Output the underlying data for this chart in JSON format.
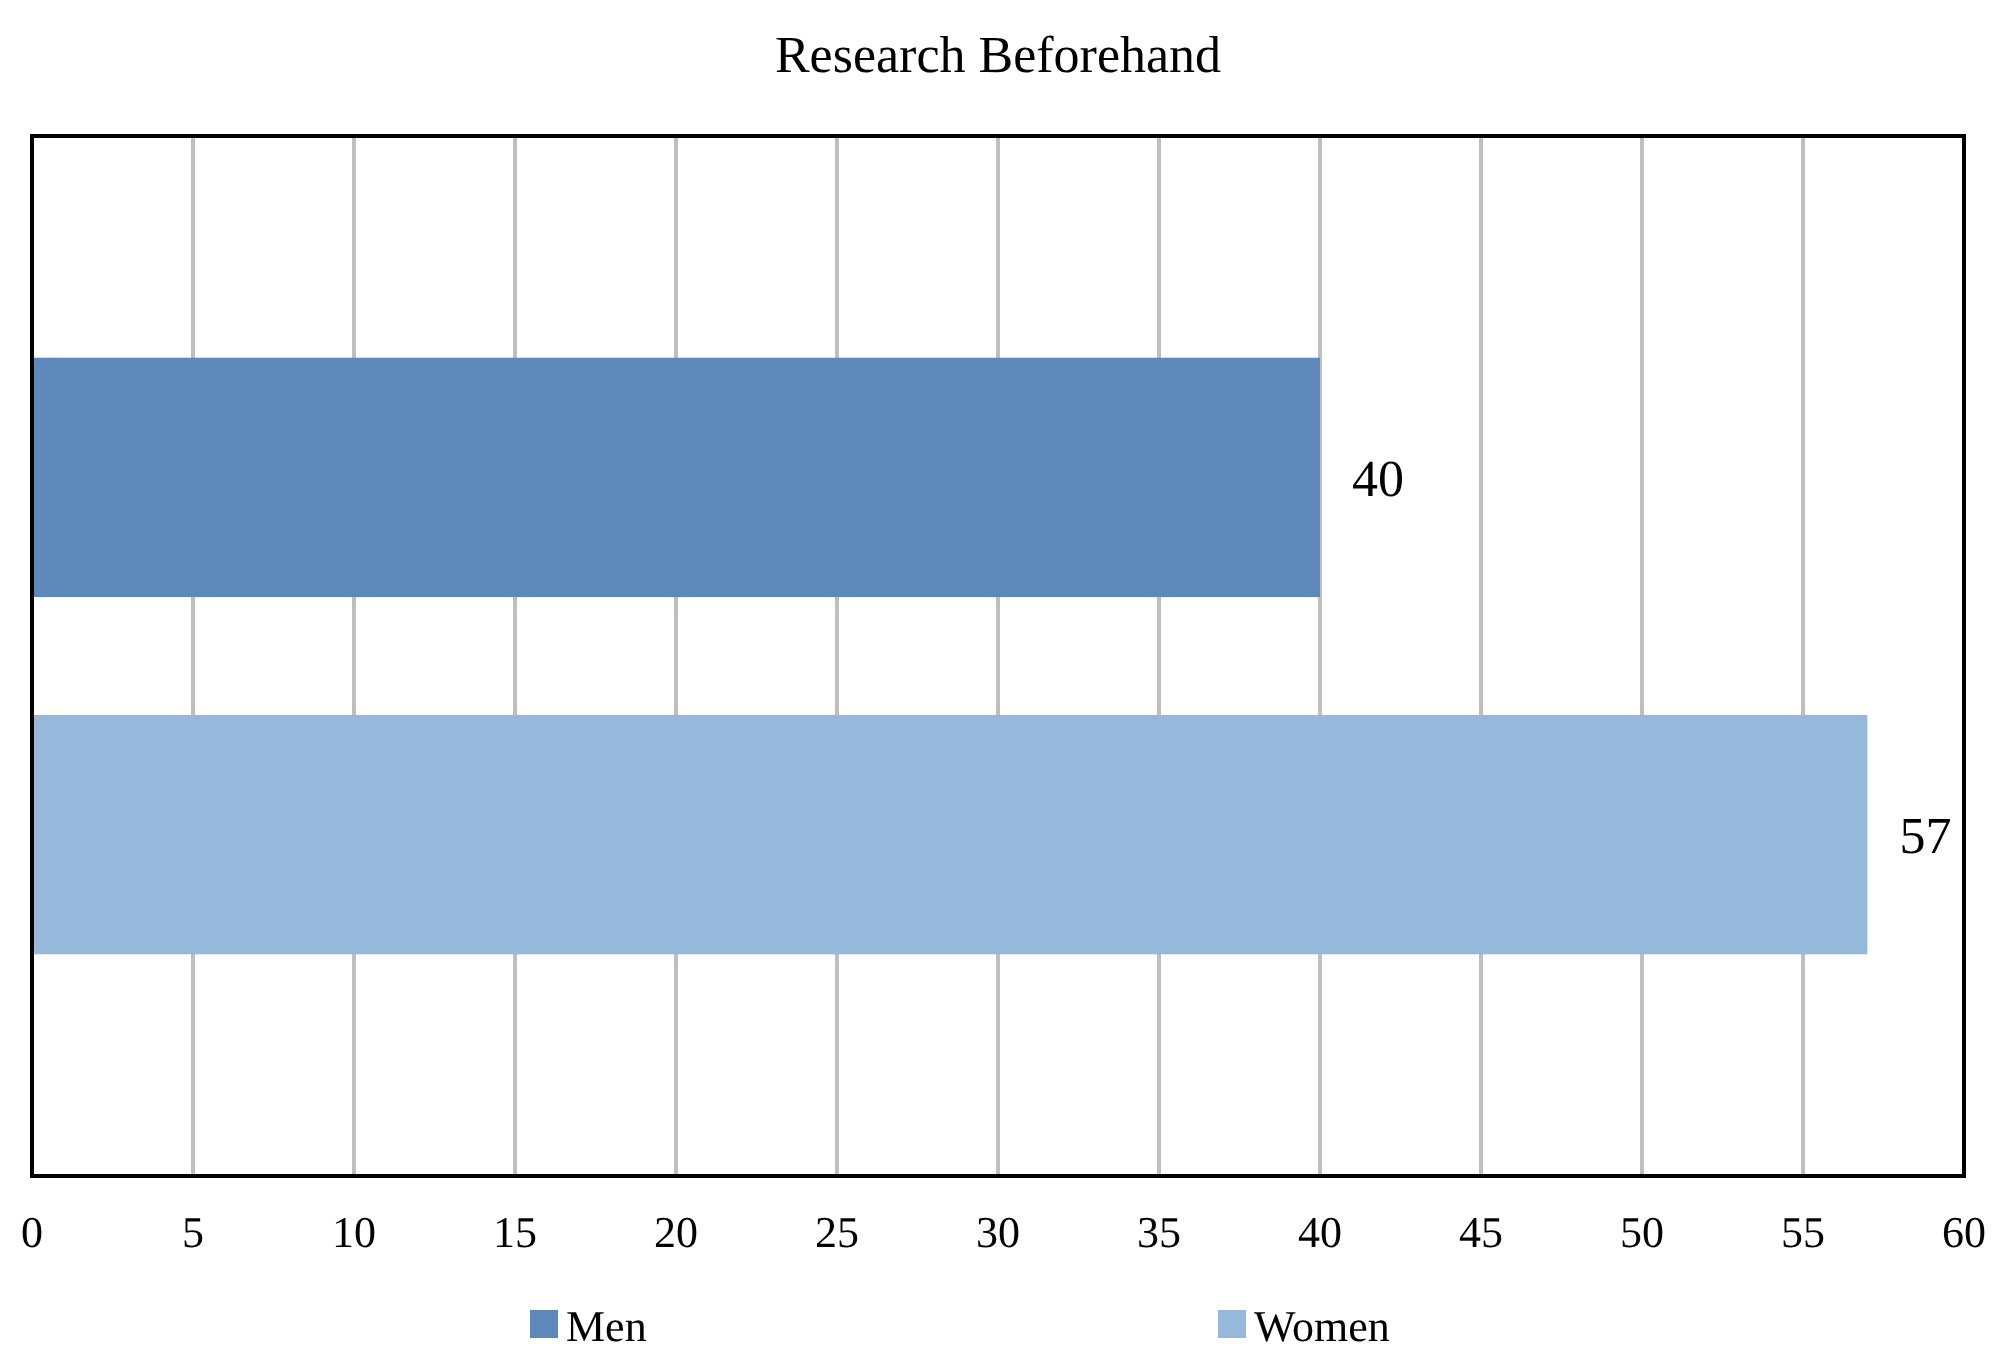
{
  "chart_data": {
    "type": "bar",
    "orientation": "horizontal",
    "title": "Research Beforehand",
    "categories": [
      null
    ],
    "series": [
      {
        "name": "Men",
        "color": "#5f88ba",
        "values": [
          40
        ]
      },
      {
        "name": "Women",
        "color": "#95b8db",
        "values": [
          57
        ]
      }
    ],
    "xlim": [
      0,
      60
    ],
    "xticks": [
      0,
      5,
      10,
      15,
      20,
      25,
      30,
      35,
      40,
      45,
      50,
      55,
      60
    ],
    "grid": "x",
    "data_labels": true,
    "legend": "bottom"
  }
}
